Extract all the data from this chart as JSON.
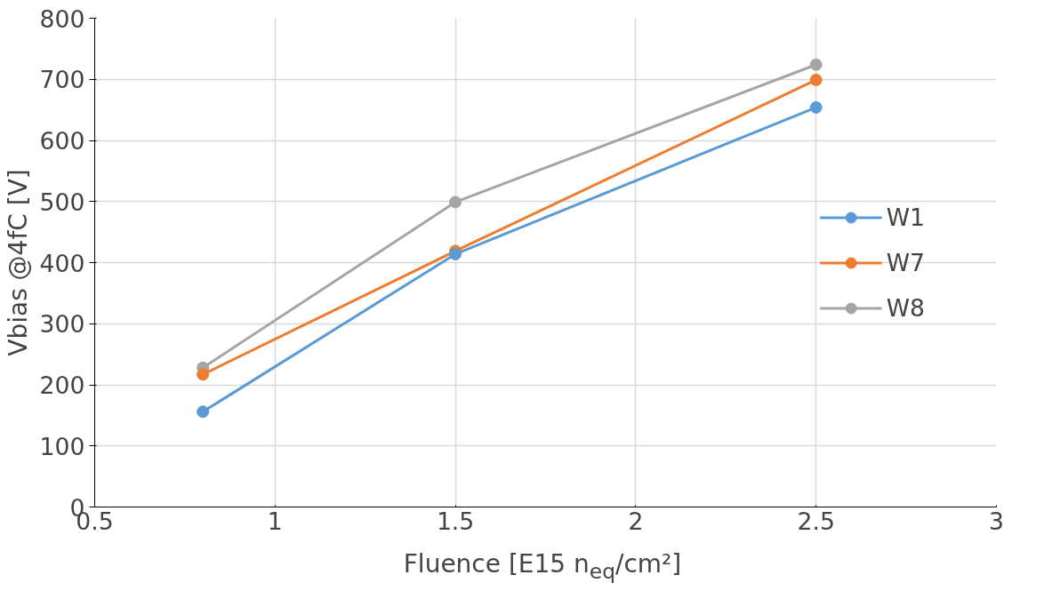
{
  "chart_data": {
    "type": "line",
    "xlabel": "Fluence [E15 n$_{eq}$/cm²]",
    "ylabel": "Vbias @4fC [V]",
    "x": [
      0.8,
      1.5,
      2.5
    ],
    "series": [
      {
        "name": "W1",
        "color": "#5b9bd5",
        "values": [
          156,
          414,
          654
        ]
      },
      {
        "name": "W7",
        "color": "#ed7d31",
        "values": [
          217,
          419,
          699
        ]
      },
      {
        "name": "W8",
        "color": "#a5a5a5",
        "values": [
          228,
          499,
          724
        ]
      }
    ],
    "xlim": [
      0.5,
      3
    ],
    "xticks": [
      0.5,
      1,
      1.5,
      2,
      2.5,
      3
    ],
    "ylim": [
      0,
      800
    ],
    "yticks": [
      0,
      100,
      200,
      300,
      400,
      500,
      600,
      700,
      800
    ],
    "grid": true,
    "legend": "right",
    "marker": "circle",
    "line_style": "solid"
  }
}
